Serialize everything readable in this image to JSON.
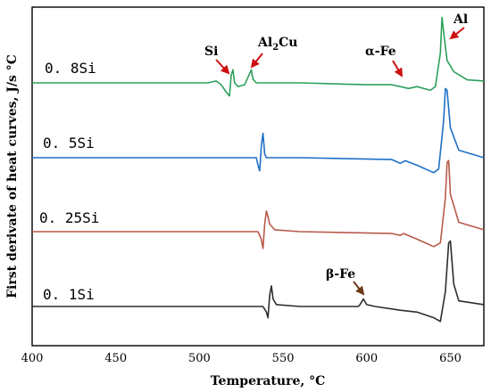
{
  "chart_data": {
    "type": "line",
    "xlabel": "Temperature, °C",
    "ylabel": "First derivate of heat curves, J/s °C",
    "xlim": [
      400,
      670
    ],
    "x_ticks": [
      "400",
      "450",
      "500",
      "550",
      "600",
      "650"
    ],
    "grid": false,
    "series": [
      {
        "name": "0. 8Si",
        "color": "#2ca05a",
        "baseline": 0.8,
        "points": [
          [
            400,
            0
          ],
          [
            505,
            0
          ],
          [
            510,
            0.05
          ],
          [
            513,
            -0.05
          ],
          [
            516,
            -0.25
          ],
          [
            518,
            -0.35
          ],
          [
            519,
            0.2
          ],
          [
            520,
            0.35
          ],
          [
            521,
            0
          ],
          [
            523,
            -0.1
          ],
          [
            527,
            -0.05
          ],
          [
            529,
            0.15
          ],
          [
            531,
            0.35
          ],
          [
            532,
            0.1
          ],
          [
            534,
            0
          ],
          [
            560,
            0
          ],
          [
            600,
            -0.05
          ],
          [
            615,
            -0.05
          ],
          [
            620,
            -0.1
          ],
          [
            625,
            -0.15
          ],
          [
            630,
            -0.1
          ],
          [
            638,
            -0.2
          ],
          [
            641,
            -0.1
          ],
          [
            644,
            0.8
          ],
          [
            645,
            1.75
          ],
          [
            646,
            1.35
          ],
          [
            648,
            0.6
          ],
          [
            652,
            0.3
          ],
          [
            660,
            0.08
          ],
          [
            670,
            0.05
          ]
        ]
      },
      {
        "name": "0. 5Si",
        "color": "#1f6fc8",
        "baseline": 0.8,
        "points": [
          [
            400,
            0
          ],
          [
            534,
            0
          ],
          [
            535,
            -0.2
          ],
          [
            536,
            -0.35
          ],
          [
            537,
            0.3
          ],
          [
            538,
            0.65
          ],
          [
            539,
            0.1
          ],
          [
            540,
            0
          ],
          [
            560,
            0
          ],
          [
            615,
            -0.05
          ],
          [
            620,
            -0.15
          ],
          [
            623,
            -0.08
          ],
          [
            630,
            -0.2
          ],
          [
            640,
            -0.4
          ],
          [
            643,
            -0.3
          ],
          [
            646,
            1.0
          ],
          [
            647,
            1.85
          ],
          [
            648,
            1.8
          ],
          [
            650,
            0.8
          ],
          [
            655,
            0.2
          ],
          [
            670,
            0
          ]
        ]
      },
      {
        "name": "0. 25Si",
        "color": "#b85a4a",
        "baseline": 0.8,
        "points": [
          [
            400,
            0
          ],
          [
            535,
            0
          ],
          [
            537,
            -0.2
          ],
          [
            538,
            -0.45
          ],
          [
            539,
            0.2
          ],
          [
            540,
            0.55
          ],
          [
            541,
            0.4
          ],
          [
            542,
            0.2
          ],
          [
            545,
            0.05
          ],
          [
            560,
            0
          ],
          [
            615,
            -0.05
          ],
          [
            620,
            -0.1
          ],
          [
            622,
            -0.05
          ],
          [
            630,
            -0.2
          ],
          [
            640,
            -0.4
          ],
          [
            644,
            -0.3
          ],
          [
            647,
            0.9
          ],
          [
            648,
            1.85
          ],
          [
            649,
            1.9
          ],
          [
            650,
            1.0
          ],
          [
            655,
            0.25
          ],
          [
            670,
            0.05
          ]
        ]
      },
      {
        "name": "0. 1Si",
        "color": "#2d2d2d",
        "baseline": 0.8,
        "points": [
          [
            400,
            0
          ],
          [
            538,
            0
          ],
          [
            540,
            -0.15
          ],
          [
            541,
            -0.3
          ],
          [
            542,
            0.3
          ],
          [
            543,
            0.55
          ],
          [
            544,
            0.2
          ],
          [
            546,
            0.05
          ],
          [
            560,
            0
          ],
          [
            580,
            0
          ],
          [
            595,
            0
          ],
          [
            596,
            0.05
          ],
          [
            598,
            0.2
          ],
          [
            600,
            0.05
          ],
          [
            605,
            0
          ],
          [
            620,
            -0.1
          ],
          [
            630,
            -0.15
          ],
          [
            640,
            -0.3
          ],
          [
            644,
            -0.4
          ],
          [
            647,
            0.4
          ],
          [
            649,
            1.7
          ],
          [
            650,
            1.75
          ],
          [
            652,
            0.6
          ],
          [
            655,
            0.15
          ],
          [
            670,
            0.05
          ]
        ]
      }
    ],
    "annotations": [
      {
        "text": "Si",
        "x": 511,
        "color": "#cc1111"
      },
      {
        "text": "Al",
        "sub": "2",
        "text2": "Cu",
        "x": 530,
        "color": "#cc1111"
      },
      {
        "text": "α-Fe",
        "x": 619,
        "color": "#cc1111"
      },
      {
        "text": "Al",
        "x": 646,
        "color": "#cc1111"
      },
      {
        "text": "β-Fe",
        "x": 598,
        "color": "#6b3a1a"
      }
    ]
  }
}
